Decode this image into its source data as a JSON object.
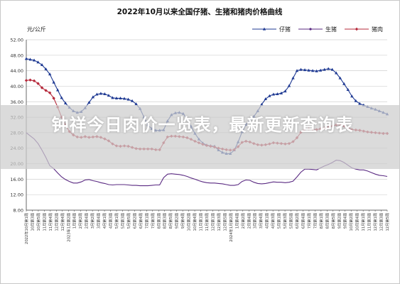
{
  "banner": {
    "title": "钟祥今日肉价一览表，最新更新查询表"
  },
  "chart_data": {
    "type": "line",
    "title": "2022年10月以来全国仔猪、生猪和猪肉价格曲线",
    "ylabel": "元/公斤",
    "ylim": [
      8,
      52
    ],
    "yticks": [
      "8.00",
      "12.00",
      "16.00",
      "20.00",
      "24.00",
      "28.00",
      "32.00",
      "36.00",
      "40.00",
      "44.00",
      "48.00",
      "52.00"
    ],
    "grid": true,
    "legend_position": "top-right",
    "x_tick_labels": [
      "2022年10月第1周",
      "10月第3周",
      "10月第5周",
      "11月第2周",
      "11月第4周",
      "12月第2周",
      "12月第4周",
      "2023年1月第2周",
      "1月第4周",
      "2月第2周",
      "2月第4周",
      "3月第2周",
      "3月第4周",
      "4月第1周",
      "4月第3周",
      "5月第1周",
      "5月第3周",
      "5月第5周",
      "6月第2周",
      "6月第4周",
      "7月第1周",
      "7月第3周",
      "8月第1周",
      "8月第3周",
      "8月第5周",
      "9月第2周",
      "9月第4周",
      "10月第2周",
      "10月第4周",
      "11月第1周",
      "11月第3周",
      "12月第1周",
      "12月第3周",
      "12月第5周",
      "2024年1月第2周",
      "1月第4周",
      "2月第2周",
      "2月第4周",
      "3月第2周",
      "3月第4周",
      "4月第1周",
      "4月第3周",
      "5月第1周",
      "5月第3周",
      "5月第5周",
      "6月第2周",
      "6月第4周",
      "7月第1周",
      "7月第3周",
      "8月第1周",
      "8月第3周",
      "8月第5周",
      "9月第2周",
      "9月第4周",
      "10月第2周",
      "10月第4周",
      "11月第1周",
      "11月第3周",
      "12月第1周",
      "12月第3周",
      "12月第5周"
    ],
    "series": [
      {
        "name": "仔猪",
        "color": "#1f3a93",
        "marker": "triangle",
        "values": [
          47.1,
          46.9,
          46.7,
          46.2,
          45.5,
          44.4,
          43.1,
          41.0,
          39.0,
          37.0,
          35.6,
          34.5,
          33.6,
          33.2,
          33.4,
          34.4,
          35.8,
          37.2,
          37.9,
          38.1,
          38.0,
          37.6,
          37.0,
          36.9,
          36.9,
          36.8,
          36.6,
          36.2,
          35.4,
          34.2,
          32.0,
          30.0,
          29.0,
          28.6,
          28.6,
          28.7,
          31.0,
          32.6,
          33.1,
          33.2,
          32.9,
          31.5,
          29.6,
          27.8,
          26.3,
          25.3,
          24.8,
          24.6,
          24.5,
          23.5,
          22.9,
          22.6,
          22.6,
          23.5,
          25.6,
          28.2,
          30.1,
          31.1,
          32.2,
          33.6,
          35.3,
          36.7,
          37.5,
          37.9,
          38.0,
          38.2,
          38.7,
          40.1,
          42.1,
          44.0,
          44.3,
          44.2,
          44.1,
          44.0,
          43.9,
          44.1,
          44.3,
          44.5,
          44.3,
          43.4,
          42.1,
          40.6,
          39.1,
          37.4,
          36.2,
          35.5,
          35.1,
          34.7,
          34.3,
          34.0,
          33.6,
          33.2,
          32.8
        ]
      },
      {
        "name": "生猪",
        "color": "#5a2a82",
        "marker": "none",
        "values": [
          28.0,
          27.2,
          26.4,
          25.2,
          23.5,
          21.6,
          19.5,
          18.7,
          17.6,
          16.6,
          15.9,
          15.4,
          15.0,
          15.0,
          15.3,
          15.8,
          15.9,
          15.6,
          15.4,
          15.1,
          14.9,
          14.6,
          14.5,
          14.6,
          14.6,
          14.6,
          14.5,
          14.4,
          14.4,
          14.3,
          14.3,
          14.3,
          14.4,
          14.5,
          14.5,
          16.4,
          17.3,
          17.4,
          17.3,
          17.2,
          17.0,
          16.7,
          16.3,
          16.0,
          15.6,
          15.3,
          15.1,
          15.0,
          15.0,
          14.9,
          14.8,
          14.6,
          14.4,
          14.4,
          14.6,
          15.4,
          15.8,
          15.7,
          15.2,
          14.9,
          14.8,
          14.9,
          15.1,
          15.3,
          15.2,
          15.2,
          15.1,
          15.2,
          15.5,
          16.6,
          17.8,
          18.6,
          18.6,
          18.5,
          18.4,
          18.9,
          19.4,
          19.8,
          20.3,
          20.9,
          20.8,
          20.3,
          19.6,
          18.9,
          18.6,
          18.4,
          18.4,
          18.1,
          17.7,
          17.3,
          17.0,
          16.9,
          16.7
        ]
      },
      {
        "name": "猪肉",
        "color": "#b5283a",
        "marker": "diamond",
        "values": [
          41.5,
          41.6,
          41.4,
          40.7,
          39.6,
          38.9,
          38.3,
          36.9,
          34.6,
          32.0,
          30.0,
          28.3,
          27.4,
          26.9,
          26.8,
          27.0,
          26.8,
          26.9,
          27.0,
          26.8,
          26.4,
          25.9,
          25.1,
          24.6,
          24.5,
          24.6,
          24.5,
          24.2,
          23.9,
          23.8,
          23.8,
          23.8,
          23.8,
          23.6,
          23.6,
          25.4,
          26.9,
          27.1,
          27.1,
          27.0,
          26.9,
          26.7,
          26.3,
          25.8,
          25.4,
          25.0,
          24.7,
          24.5,
          24.3,
          24.0,
          23.8,
          23.6,
          23.5,
          23.6,
          24.4,
          25.5,
          25.8,
          25.6,
          25.2,
          24.9,
          24.8,
          24.9,
          25.1,
          25.4,
          25.3,
          25.2,
          25.1,
          25.2,
          25.7,
          26.7,
          28.1,
          28.9,
          29.0,
          28.9,
          28.8,
          29.0,
          29.2,
          29.4,
          29.7,
          30.0,
          30.0,
          29.7,
          29.3,
          28.8,
          28.7,
          28.6,
          28.4,
          28.2,
          28.1,
          28.0,
          27.9,
          27.8,
          27.8
        ]
      }
    ]
  }
}
